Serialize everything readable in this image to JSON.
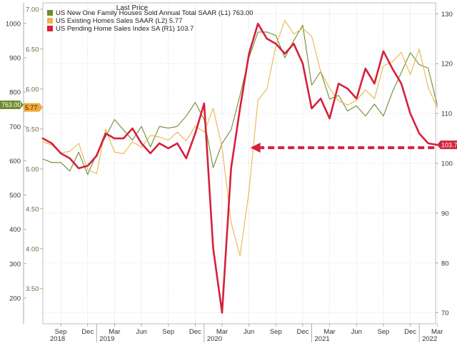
{
  "chart_data": {
    "type": "line",
    "legend": {
      "title": "Last Price",
      "placement": "top-left",
      "entries": [
        {
          "key": "s1",
          "text": "US New One Family Houses Sold Annual Total SAAR  (L1)",
          "value": "763.00"
        },
        {
          "key": "s2",
          "text": "US Existing Homes Sales SAAR  (L2)",
          "value": "5.77"
        },
        {
          "key": "s3",
          "text": "US Pending Home Sales Index SA  (R1)",
          "value": "103.7"
        }
      ]
    },
    "colors": {
      "s1": "#6e8c2d",
      "s2": "#e9b54a",
      "s3": "#d5213a"
    },
    "grid": true,
    "x_start": "2018-07",
    "x_ticks": [
      {
        "label": "Sep",
        "date": "2018-09"
      },
      {
        "label": "Dec",
        "date": "2018-12"
      },
      {
        "label": "Mar",
        "date": "2019-03"
      },
      {
        "label": "Jun",
        "date": "2019-06"
      },
      {
        "label": "Sep",
        "date": "2019-09"
      },
      {
        "label": "Dec",
        "date": "2019-12"
      },
      {
        "label": "Mar",
        "date": "2020-03"
      },
      {
        "label": "Jun",
        "date": "2020-06"
      },
      {
        "label": "Sep",
        "date": "2020-09"
      },
      {
        "label": "Dec",
        "date": "2020-12"
      },
      {
        "label": "Mar",
        "date": "2021-03"
      },
      {
        "label": "Jun",
        "date": "2021-06"
      },
      {
        "label": "Sep",
        "date": "2021-09"
      },
      {
        "label": "Dec",
        "date": "2021-12"
      },
      {
        "label": "Mar",
        "date": "2022-03"
      }
    ],
    "years": [
      {
        "label": "2018",
        "date": "2018-07"
      },
      {
        "label": "2019",
        "date": "2019-01"
      },
      {
        "label": "2020",
        "date": "2020-01"
      },
      {
        "label": "2021",
        "date": "2021-01"
      },
      {
        "label": "2022",
        "date": "2022-01"
      }
    ],
    "axes": {
      "l1": {
        "range": [
          125,
          1060
        ],
        "ticks": [
          200,
          300,
          400,
          500,
          600,
          700,
          800,
          900,
          1000
        ]
      },
      "l2": {
        "range": [
          3.06,
          7.08
        ],
        "ticks": [
          "3.50",
          "4.00",
          "4.50",
          "5.00",
          "5.50",
          "6.00",
          "6.50",
          "7.00"
        ]
      },
      "r1": {
        "range": [
          67.8,
          132.2
        ],
        "ticks": [
          70,
          80,
          90,
          100,
          110,
          120,
          130
        ]
      }
    },
    "series": [
      {
        "key": "s1",
        "axis": "l1",
        "name": "US New One Family Houses Sold Annual Total SAAR",
        "x": [
          "2018-07",
          "2018-08",
          "2018-09",
          "2018-10",
          "2018-11",
          "2018-12",
          "2019-01",
          "2019-02",
          "2019-03",
          "2019-04",
          "2019-05",
          "2019-06",
          "2019-07",
          "2019-08",
          "2019-09",
          "2019-10",
          "2019-11",
          "2019-12",
          "2020-01",
          "2020-02",
          "2020-03",
          "2020-04",
          "2020-05",
          "2020-06",
          "2020-07",
          "2020-08",
          "2020-09",
          "2020-10",
          "2020-11",
          "2020-12",
          "2021-01",
          "2021-02",
          "2021-03",
          "2021-04",
          "2021-05",
          "2021-06",
          "2021-07",
          "2021-08",
          "2021-09",
          "2021-10",
          "2021-12",
          "2022-01",
          "2022-02",
          "2022-03"
        ],
        "values": [
          605,
          595,
          595,
          570,
          625,
          560,
          620,
          670,
          720,
          690,
          660,
          700,
          640,
          700,
          695,
          700,
          730,
          770,
          720,
          580,
          650,
          690,
          790,
          900,
          975,
          975,
          965,
          900,
          950,
          995,
          820,
          860,
          780,
          790,
          745,
          760,
          730,
          765,
          730,
          800,
          915,
          880,
          870,
          763
        ]
      },
      {
        "key": "s2",
        "axis": "l2",
        "name": "US Existing Homes Sales SAAR",
        "x": [
          "2018-07",
          "2018-08",
          "2018-09",
          "2018-10",
          "2018-11",
          "2018-12",
          "2019-01",
          "2019-02",
          "2019-03",
          "2019-04",
          "2019-05",
          "2019-06",
          "2019-07",
          "2019-08",
          "2019-09",
          "2019-10",
          "2019-11",
          "2019-12",
          "2020-01",
          "2020-02",
          "2020-03",
          "2020-04",
          "2020-05",
          "2020-06",
          "2020-07",
          "2020-08",
          "2020-09",
          "2020-10",
          "2020-11",
          "2020-12",
          "2021-01",
          "2021-02",
          "2021-03",
          "2021-04",
          "2021-05",
          "2021-06",
          "2021-07",
          "2021-08",
          "2021-09",
          "2021-10",
          "2021-11",
          "2021-12",
          "2022-01",
          "2022-02",
          "2022-03"
        ],
        "values": [
          5.34,
          5.3,
          5.2,
          5.22,
          5.32,
          4.99,
          4.94,
          5.5,
          5.21,
          5.19,
          5.34,
          5.27,
          5.42,
          5.4,
          5.36,
          5.46,
          5.35,
          5.54,
          5.46,
          5.76,
          5.27,
          4.33,
          3.91,
          4.72,
          5.86,
          6.0,
          6.54,
          6.86,
          6.69,
          6.76,
          6.66,
          6.22,
          6.01,
          5.85,
          5.8,
          5.86,
          5.99,
          5.88,
          6.29,
          6.34,
          6.46,
          6.18,
          6.5,
          6.02,
          5.77
        ]
      },
      {
        "key": "s3",
        "axis": "r1",
        "name": "US Pending Home Sales Index SA",
        "x": [
          "2018-07",
          "2018-08",
          "2018-09",
          "2018-10",
          "2018-11",
          "2018-12",
          "2019-01",
          "2019-02",
          "2019-03",
          "2019-04",
          "2019-05",
          "2019-06",
          "2019-07",
          "2019-08",
          "2019-09",
          "2019-10",
          "2019-11",
          "2019-12",
          "2020-01",
          "2020-02",
          "2020-03",
          "2020-04",
          "2020-05",
          "2020-06",
          "2020-07",
          "2020-08",
          "2020-09",
          "2020-10",
          "2020-11",
          "2020-12",
          "2021-01",
          "2021-02",
          "2021-03",
          "2021-04",
          "2021-05",
          "2021-06",
          "2021-07",
          "2021-08",
          "2021-09",
          "2021-10",
          "2021-11",
          "2021-12",
          "2022-01",
          "2022-02",
          "2022-03"
        ],
        "values": [
          105,
          104,
          102,
          101,
          99,
          99.5,
          101.5,
          106,
          105,
          105,
          107,
          104,
          102,
          104,
          103,
          104,
          101,
          106,
          112,
          83,
          70,
          99,
          111,
          122,
          128,
          125,
          124,
          122,
          124,
          120,
          111,
          113,
          109,
          116,
          115,
          113,
          119,
          116,
          122.5,
          119,
          116,
          110,
          106,
          104,
          103.7
        ]
      }
    ],
    "badges": [
      {
        "key": "s1",
        "text": "763.00",
        "axis": "l1",
        "value": 763
      },
      {
        "key": "s2",
        "text": "5.77",
        "axis": "l2",
        "value": 5.77
      },
      {
        "key": "s3",
        "text": "103.7",
        "axis": "r1",
        "value": 103.7
      }
    ],
    "annotation": {
      "type": "dashed-arrow",
      "color": "#d5213a",
      "axis": "r1",
      "value": 103.7,
      "from": "2022-03",
      "to": "2020-06"
    }
  }
}
